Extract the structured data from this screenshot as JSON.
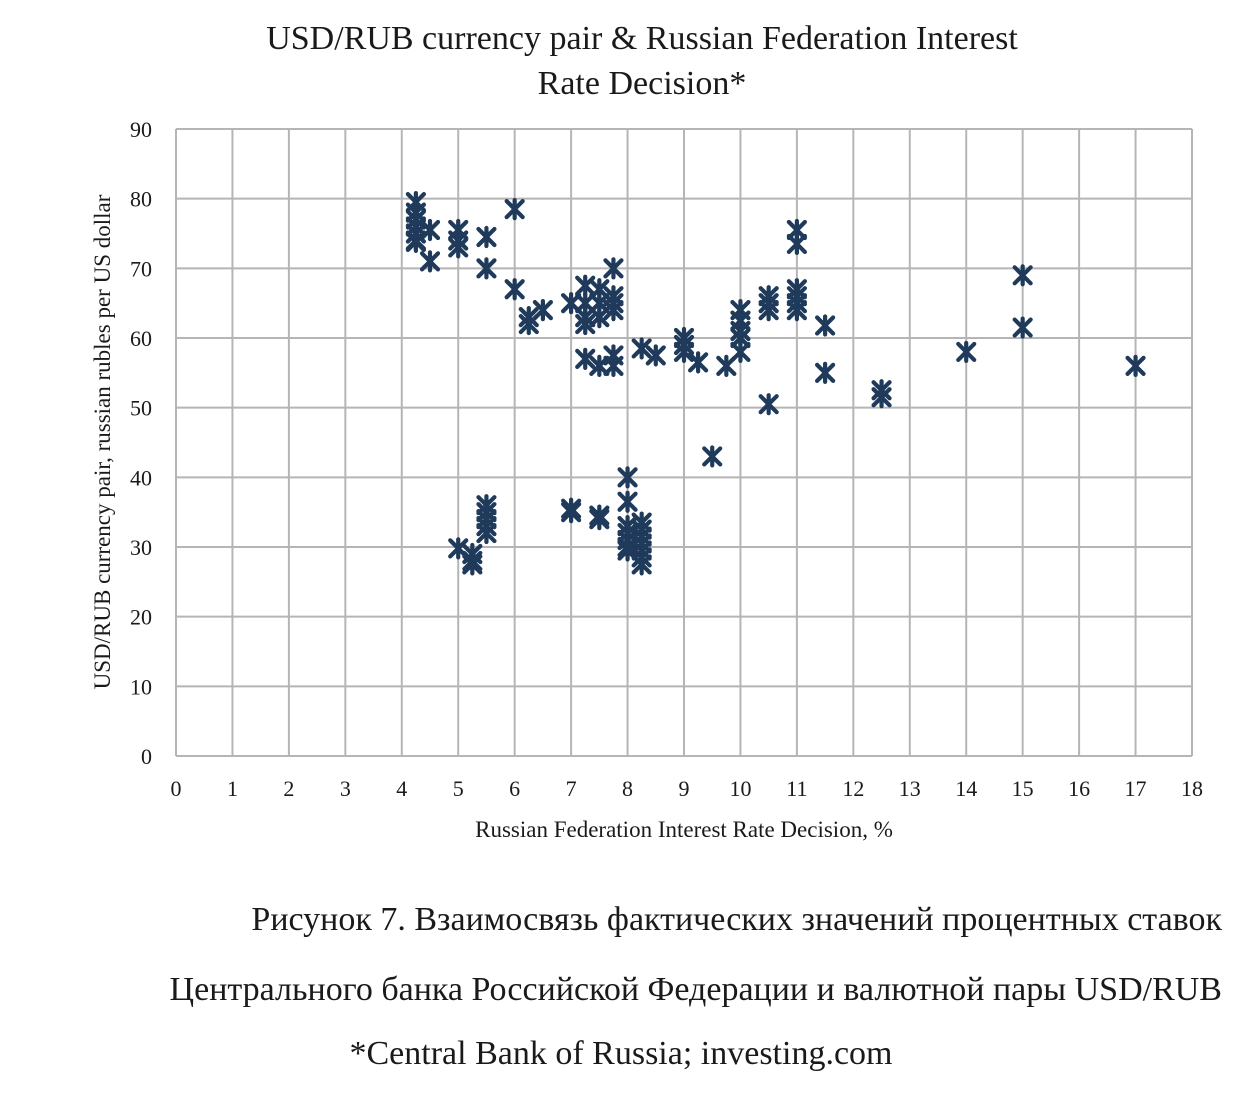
{
  "chart_data": {
    "type": "scatter",
    "title_lines": [
      "USD/RUB currency pair & Russian Federation Interest",
      "Rate Decision*"
    ],
    "xlabel": "Russian Federation Interest Rate Decision, %",
    "ylabel": "USD/RUB currency pair, russian rubles per US dollar",
    "xlim": [
      0,
      18
    ],
    "ylim": [
      0,
      90
    ],
    "x_ticks": [
      0,
      1,
      2,
      3,
      4,
      5,
      6,
      7,
      8,
      9,
      10,
      11,
      12,
      13,
      14,
      15,
      16,
      17,
      18
    ],
    "y_ticks": [
      0,
      10,
      20,
      30,
      40,
      50,
      60,
      70,
      80,
      90
    ],
    "grid": true,
    "marker": "asterisk",
    "marker_color": "#1f3a5a",
    "points": [
      [
        4.25,
        79.5
      ],
      [
        4.25,
        78.0
      ],
      [
        4.25,
        77.0
      ],
      [
        4.25,
        76.0
      ],
      [
        4.25,
        75.0
      ],
      [
        4.25,
        74.0
      ],
      [
        4.25,
        73.8
      ],
      [
        4.5,
        75.5
      ],
      [
        4.5,
        71.0
      ],
      [
        5.0,
        75.5
      ],
      [
        5.0,
        74.0
      ],
      [
        5.0,
        73.0
      ],
      [
        5.5,
        74.5
      ],
      [
        5.5,
        70.0
      ],
      [
        6.0,
        78.5
      ],
      [
        6.0,
        67.0
      ],
      [
        6.25,
        63.0
      ],
      [
        6.25,
        62.0
      ],
      [
        6.5,
        64.0
      ],
      [
        7.0,
        65.0
      ],
      [
        7.25,
        67.5
      ],
      [
        7.25,
        65.0
      ],
      [
        7.25,
        63.0
      ],
      [
        7.25,
        62.0
      ],
      [
        7.25,
        57.0
      ],
      [
        7.5,
        67.0
      ],
      [
        7.5,
        65.0
      ],
      [
        7.5,
        63.0
      ],
      [
        7.5,
        56.0
      ],
      [
        7.75,
        70.0
      ],
      [
        7.75,
        66.0
      ],
      [
        7.75,
        65.0
      ],
      [
        7.75,
        64.0
      ],
      [
        7.75,
        57.5
      ],
      [
        7.75,
        56.0
      ],
      [
        8.25,
        58.5
      ],
      [
        8.5,
        57.5
      ],
      [
        9.0,
        60.0
      ],
      [
        9.0,
        59.0
      ],
      [
        9.0,
        58.0
      ],
      [
        9.25,
        56.5
      ],
      [
        9.75,
        56.0
      ],
      [
        10.0,
        64.0
      ],
      [
        10.0,
        62.5
      ],
      [
        10.0,
        61.0
      ],
      [
        10.0,
        60.0
      ],
      [
        10.0,
        58.0
      ],
      [
        10.5,
        66.0
      ],
      [
        10.5,
        65.0
      ],
      [
        10.5,
        64.0
      ],
      [
        11.0,
        75.5
      ],
      [
        11.0,
        73.5
      ],
      [
        11.0,
        67.0
      ],
      [
        11.0,
        66.0
      ],
      [
        11.0,
        65.0
      ],
      [
        11.0,
        64.0
      ],
      [
        11.5,
        61.8
      ],
      [
        11.5,
        55.0
      ],
      [
        12.5,
        52.5
      ],
      [
        12.5,
        51.5
      ],
      [
        14.0,
        58.0
      ],
      [
        15.0,
        69.0
      ],
      [
        15.0,
        61.5
      ],
      [
        17.0,
        56.0
      ],
      [
        10.5,
        50.5
      ],
      [
        9.5,
        43.0
      ],
      [
        8.0,
        40.0
      ],
      [
        8.0,
        36.5
      ],
      [
        8.0,
        33.0
      ],
      [
        8.0,
        32.0
      ],
      [
        8.0,
        31.0
      ],
      [
        8.0,
        30.0
      ],
      [
        8.0,
        29.5
      ],
      [
        8.25,
        33.5
      ],
      [
        8.25,
        32.5
      ],
      [
        8.25,
        31.5
      ],
      [
        8.25,
        30.5
      ],
      [
        8.25,
        29.5
      ],
      [
        8.25,
        28.5
      ],
      [
        8.25,
        27.5
      ],
      [
        7.0,
        35.5
      ],
      [
        7.0,
        35.0
      ],
      [
        7.5,
        34.5
      ],
      [
        7.5,
        34.0
      ],
      [
        5.5,
        36.0
      ],
      [
        5.5,
        35.0
      ],
      [
        5.5,
        34.0
      ],
      [
        5.5,
        33.0
      ],
      [
        5.5,
        32.0
      ],
      [
        5.0,
        29.8
      ],
      [
        5.25,
        29.0
      ],
      [
        5.25,
        28.0
      ],
      [
        5.25,
        27.5
      ]
    ]
  },
  "caption": {
    "line1": "Рисунок 7. Взаимосвязь фактических значений процентных ставок",
    "line2": "Центрального банка Российской Федерации и валютной пары USD/RUB",
    "source": "*Central Bank of Russia; investing.com"
  }
}
